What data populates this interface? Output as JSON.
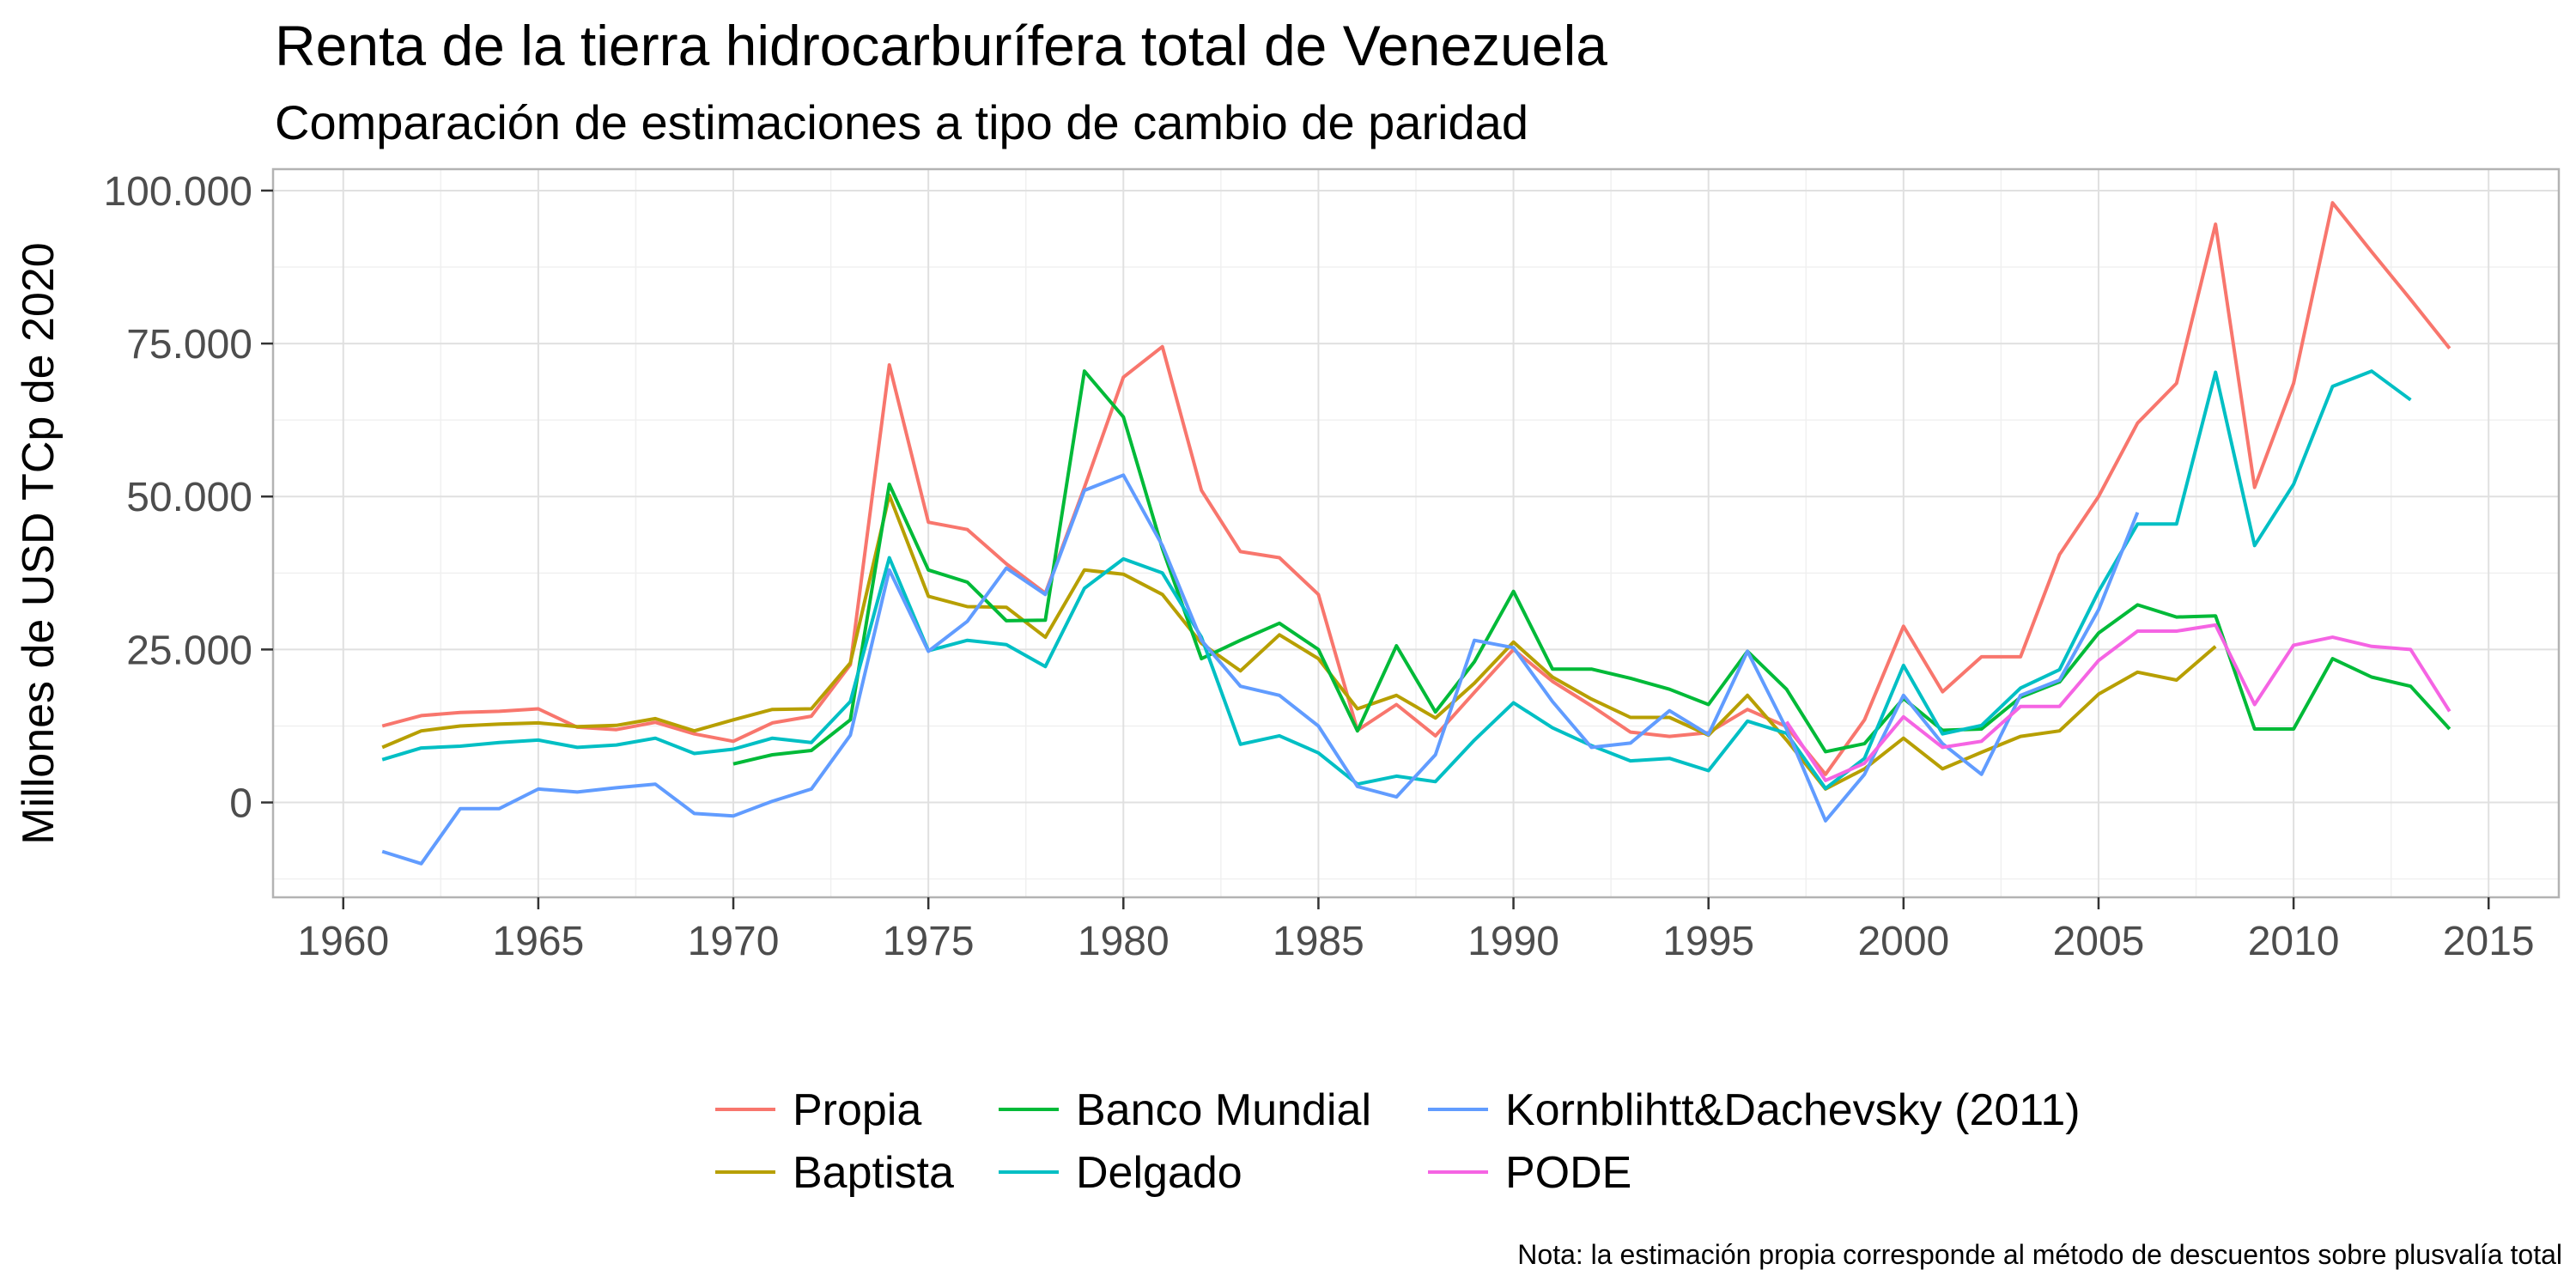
{
  "chart_data": {
    "type": "line",
    "title": "Renta de la tierra hidrocarburífera total de Venezuela",
    "subtitle": "Comparación de estimaciones a tipo de cambio de paridad",
    "xlabel": "",
    "ylabel": "Millones de USD TCp de 2020",
    "caption": "Nota: la estimación propia corresponde al método de descuentos sobre plusvalía total",
    "xlim": [
      1958.2,
      2016.8
    ],
    "ylim": [
      -15500,
      103500
    ],
    "x_ticks": [
      1960,
      1965,
      1970,
      1975,
      1980,
      1985,
      1990,
      1995,
      2000,
      2005,
      2010,
      2015
    ],
    "x_tick_labels": [
      "1960",
      "1965",
      "1970",
      "1975",
      "1980",
      "1985",
      "1990",
      "1995",
      "2000",
      "2005",
      "2010",
      "2015"
    ],
    "y_ticks": [
      0,
      25000,
      50000,
      75000,
      100000
    ],
    "y_tick_labels": [
      "0",
      "25.000",
      "50.000",
      "75.000",
      "100.000"
    ],
    "grid": true,
    "legend_position": "bottom",
    "series": [
      {
        "name": "Propia",
        "color": "#F8766D",
        "x": [
          1961,
          1962,
          1963,
          1964,
          1965,
          1966,
          1967,
          1968,
          1969,
          1970,
          1971,
          1972,
          1973,
          1974,
          1975,
          1976,
          1977,
          1978,
          1979,
          1980,
          1981,
          1982,
          1983,
          1984,
          1985,
          1986,
          1987,
          1988,
          1989,
          1990,
          1991,
          1992,
          1993,
          1994,
          1995,
          1996,
          1997,
          1998,
          1999,
          2000,
          2001,
          2002,
          2003,
          2004,
          2005,
          2006,
          2007,
          2008,
          2009,
          2010,
          2011,
          2012,
          2013,
          2014
        ],
        "y": [
          12500,
          14200,
          14700,
          14900,
          15300,
          12300,
          11900,
          13100,
          11200,
          10000,
          13000,
          14100,
          22500,
          71500,
          45800,
          44600,
          39000,
          34200,
          51500,
          69500,
          74500,
          51000,
          41000,
          40000,
          34000,
          11800,
          16000,
          10900,
          18000,
          25000,
          19800,
          15800,
          11500,
          10800,
          11400,
          15200,
          12400,
          4600,
          13500,
          28800,
          18100,
          23800,
          23800,
          40500,
          50000,
          62000,
          68500,
          94500,
          51500,
          68500,
          98000,
          90000,
          82200,
          74200
        ]
      },
      {
        "name": "Baptista",
        "color": "#B79F00",
        "x": [
          1961,
          1962,
          1963,
          1964,
          1965,
          1966,
          1967,
          1968,
          1969,
          1970,
          1971,
          1972,
          1973,
          1974,
          1975,
          1976,
          1977,
          1978,
          1979,
          1980,
          1981,
          1982,
          1983,
          1984,
          1985,
          1986,
          1987,
          1988,
          1989,
          1990,
          1991,
          1992,
          1993,
          1994,
          1995,
          1996,
          1997,
          1998,
          1999,
          2000,
          2001,
          2002,
          2003,
          2004,
          2005,
          2006,
          2007,
          2008
        ],
        "y": [
          9000,
          11700,
          12500,
          12800,
          13000,
          12400,
          12600,
          13700,
          11700,
          13500,
          15200,
          15300,
          22800,
          50200,
          33700,
          32000,
          31900,
          27000,
          38000,
          37300,
          34000,
          26000,
          21500,
          27400,
          23500,
          15300,
          17500,
          13800,
          19500,
          26200,
          20500,
          16900,
          13900,
          13900,
          11000,
          17500,
          10200,
          2200,
          5500,
          10500,
          5500,
          8200,
          10800,
          11700,
          17700,
          21300,
          20000,
          25500
        ]
      },
      {
        "name": "Banco Mundial",
        "color": "#00BA38",
        "x": [
          1970,
          1971,
          1972,
          1973,
          1974,
          1975,
          1976,
          1977,
          1978,
          1979,
          1980,
          1981,
          1982,
          1983,
          1984,
          1985,
          1986,
          1987,
          1988,
          1989,
          1990,
          1991,
          1992,
          1993,
          1994,
          1995,
          1996,
          1997,
          1998,
          1999,
          2000,
          2001,
          2002,
          2003,
          2004,
          2005,
          2006,
          2007,
          2008,
          2009,
          2010,
          2011,
          2012,
          2013,
          2014
        ],
        "y": [
          6300,
          7800,
          8500,
          13500,
          52000,
          38000,
          36000,
          29700,
          29800,
          70500,
          63000,
          41500,
          23500,
          26500,
          29300,
          25000,
          11700,
          25600,
          14800,
          23000,
          34500,
          21800,
          21800,
          20300,
          18500,
          16000,
          24700,
          18500,
          8300,
          9600,
          17000,
          11800,
          12000,
          17200,
          19700,
          27700,
          32300,
          30300,
          30500,
          12000,
          12000,
          23500,
          20500,
          19000,
          12000
        ]
      },
      {
        "name": "Delgado",
        "color": "#00BFC4",
        "x": [
          1961,
          1962,
          1963,
          1964,
          1965,
          1966,
          1967,
          1968,
          1969,
          1970,
          1971,
          1972,
          1973,
          1974,
          1975,
          1976,
          1977,
          1978,
          1979,
          1980,
          1981,
          1982,
          1983,
          1984,
          1985,
          1986,
          1987,
          1988,
          1989,
          1990,
          1991,
          1992,
          1993,
          1994,
          1995,
          1996,
          1997,
          1998,
          1999,
          2000,
          2001,
          2002,
          2003,
          2004,
          2005,
          2006,
          2007,
          2008,
          2009,
          2010,
          2011,
          2012,
          2013
        ],
        "y": [
          7000,
          8900,
          9200,
          9800,
          10200,
          9000,
          9400,
          10500,
          8000,
          8700,
          10500,
          9800,
          16500,
          40000,
          24800,
          26500,
          25800,
          22200,
          35000,
          39800,
          37500,
          27000,
          9500,
          10900,
          8100,
          3000,
          4300,
          3400,
          10200,
          16300,
          12200,
          9300,
          6800,
          7200,
          5200,
          13300,
          11300,
          2300,
          7200,
          22400,
          11200,
          12600,
          18700,
          21700,
          34500,
          45500,
          45500,
          70300,
          42000,
          52000,
          68000,
          70500,
          65800
        ]
      },
      {
        "name": "Kornblihtt&Dachevsky (2011)",
        "color": "#619CFF",
        "x": [
          1961,
          1962,
          1963,
          1964,
          1965,
          1966,
          1967,
          1968,
          1969,
          1970,
          1971,
          1972,
          1973,
          1974,
          1975,
          1976,
          1977,
          1978,
          1979,
          1980,
          1981,
          1982,
          1983,
          1984,
          1985,
          1986,
          1987,
          1988,
          1989,
          1990,
          1991,
          1992,
          1993,
          1994,
          1995,
          1996,
          1997,
          1998,
          1999,
          2000,
          2001,
          2002,
          2003,
          2004,
          2005,
          2006
        ],
        "y": [
          -8000,
          -10000,
          -1000,
          -1000,
          2200,
          1700,
          2400,
          3000,
          -1800,
          -2200,
          200,
          2200,
          11000,
          38000,
          24700,
          29600,
          38300,
          34000,
          51000,
          53500,
          42000,
          26500,
          19000,
          17500,
          12500,
          2600,
          900,
          7800,
          26500,
          25300,
          16500,
          9000,
          9700,
          15000,
          11100,
          24700,
          12000,
          -3000,
          4600,
          17500,
          9600,
          4600,
          17500,
          20000,
          31500,
          47400
        ]
      },
      {
        "name": "PODE",
        "color": "#F564E3",
        "x": [
          1997,
          1998,
          1999,
          2000,
          2001,
          2002,
          2003,
          2004,
          2005,
          2006,
          2007,
          2008,
          2009,
          2010,
          2011,
          2012,
          2013,
          2014
        ],
        "y": [
          13200,
          3600,
          6400,
          14000,
          9000,
          10000,
          15700,
          15700,
          23200,
          28000,
          28000,
          29000,
          16000,
          25700,
          27000,
          25500,
          25000,
          14900
        ]
      }
    ]
  }
}
